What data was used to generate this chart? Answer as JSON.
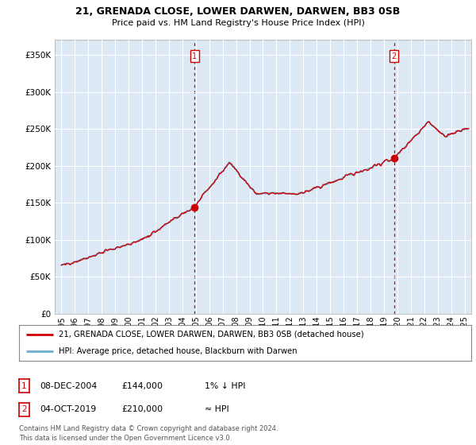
{
  "title1": "21, GRENADA CLOSE, LOWER DARWEN, DARWEN, BB3 0SB",
  "title2": "Price paid vs. HM Land Registry's House Price Index (HPI)",
  "plot_bg_color": "#dce9f5",
  "ylabel_values": [
    0,
    50000,
    100000,
    150000,
    200000,
    250000,
    300000,
    350000
  ],
  "ylim": [
    0,
    370000
  ],
  "xlim_start": 1994.5,
  "xlim_end": 2025.5,
  "purchase1_date": 2004.92,
  "purchase1_price": 144000,
  "purchase1_label": "1",
  "purchase2_date": 2019.75,
  "purchase2_price": 210000,
  "purchase2_label": "2",
  "legend_line1": "21, GRENADA CLOSE, LOWER DARWEN, DARWEN, BB3 0SB (detached house)",
  "legend_line2": "HPI: Average price, detached house, Blackburn with Darwen",
  "footer": "Contains HM Land Registry data © Crown copyright and database right 2024.\nThis data is licensed under the Open Government Licence v3.0.",
  "line_color_hpi": "#6baed6",
  "line_color_price": "#cc0000",
  "dashed_line_color": "#cc0000",
  "ann1_date": "08-DEC-2004",
  "ann1_price": "£144,000",
  "ann1_rel": "1% ↓ HPI",
  "ann2_date": "04-OCT-2019",
  "ann2_price": "£210,000",
  "ann2_rel": "≈ HPI"
}
